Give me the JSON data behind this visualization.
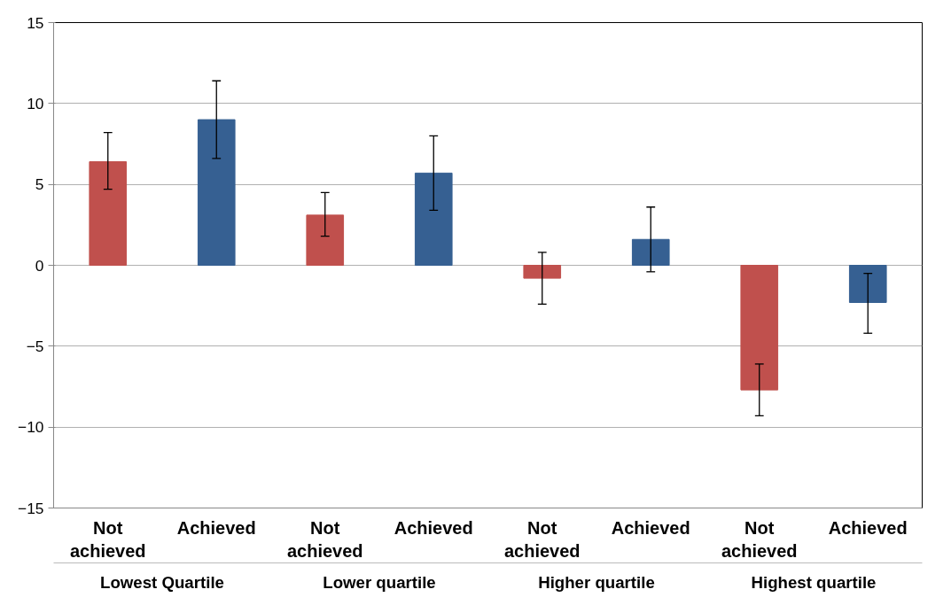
{
  "chart_data": {
    "type": "bar",
    "categories": [
      "Not achieved",
      "Achieved",
      "Not achieved",
      "Achieved",
      "Not achieved",
      "Achieved",
      "Not achieved",
      "Achieved"
    ],
    "values": [
      6.4,
      9.0,
      3.1,
      5.7,
      -0.8,
      1.6,
      -7.7,
      -2.3
    ],
    "colors": [
      "#c0504d",
      "#366092",
      "#c0504d",
      "#366092",
      "#c0504d",
      "#366092",
      "#c0504d",
      "#366092"
    ],
    "errors": [
      [
        4.7,
        8.2
      ],
      [
        6.6,
        11.4
      ],
      [
        1.8,
        4.5
      ],
      [
        3.4,
        8.0
      ],
      [
        -2.4,
        0.8
      ],
      [
        -0.4,
        3.6
      ],
      [
        -9.3,
        -6.1
      ],
      [
        -4.2,
        -0.5
      ]
    ],
    "annotations": [
      "Lowest Quartile",
      "Lower quartile",
      "Higher quartile",
      "Highest quartile"
    ],
    "ylim": [
      -15,
      15
    ],
    "yticks": [
      -15,
      -10,
      -5,
      0,
      5,
      10,
      15
    ],
    "grid": "y"
  }
}
